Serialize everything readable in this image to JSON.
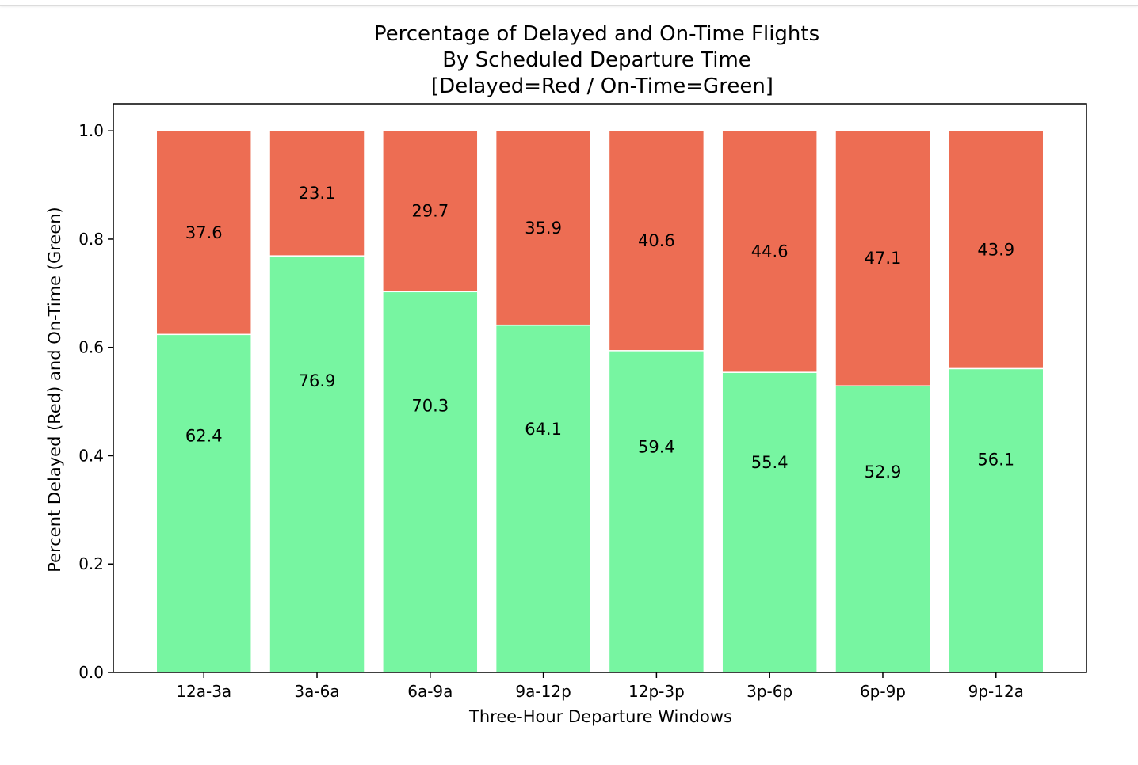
{
  "chart_data": {
    "type": "bar",
    "stacked": true,
    "normalized": true,
    "title": [
      "Percentage of Delayed and On-Time Flights",
      "By Scheduled Departure Time",
      "[Delayed=Red / On-Time=Green]"
    ],
    "xlabel": "Three-Hour Departure Windows",
    "ylabel": "Percent Delayed (Red) and On-Time (Green)",
    "ylim": [
      0,
      1.05
    ],
    "yticks": [
      "0.0",
      "0.2",
      "0.4",
      "0.6",
      "0.8",
      "1.0"
    ],
    "categories": [
      "12a-3a",
      "3a-6a",
      "6a-9a",
      "9a-12p",
      "12p-3p",
      "3p-6p",
      "6p-9p",
      "9p-12a"
    ],
    "series": [
      {
        "name": "On-Time",
        "color": "#77f5a1",
        "values": [
          0.624,
          0.769,
          0.703,
          0.641,
          0.594,
          0.554,
          0.529,
          0.561
        ],
        "labels": [
          "62.4",
          "76.9",
          "70.3",
          "64.1",
          "59.4",
          "55.4",
          "52.9",
          "56.1"
        ]
      },
      {
        "name": "Delayed",
        "color": "#ed6d53",
        "values": [
          0.376,
          0.231,
          0.297,
          0.359,
          0.406,
          0.446,
          0.471,
          0.439
        ],
        "labels": [
          "37.6",
          "23.1",
          "29.7",
          "35.9",
          "40.6",
          "44.6",
          "47.1",
          "43.9"
        ]
      }
    ],
    "grid": false,
    "legend": "none"
  }
}
